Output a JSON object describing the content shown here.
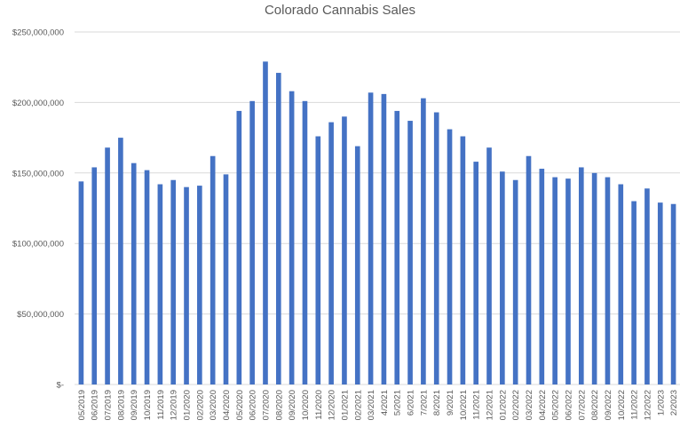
{
  "chart_data": {
    "type": "bar",
    "title": "Colorado Cannabis Sales",
    "xlabel": "",
    "ylabel": "",
    "ylim": [
      0,
      250000000
    ],
    "grid": true,
    "legend": "none",
    "bar_color": "#4472c4",
    "y_ticks": [
      {
        "value": 0,
        "label": "$-"
      },
      {
        "value": 50000000,
        "label": "$50,000,000"
      },
      {
        "value": 100000000,
        "label": "$100,000,000"
      },
      {
        "value": 150000000,
        "label": "$150,000,000"
      },
      {
        "value": 200000000,
        "label": "$200,000,000"
      },
      {
        "value": 250000000,
        "label": "$250,000,000"
      }
    ],
    "categories": [
      "05/2019",
      "06/2019",
      "07/2019",
      "08/2019",
      "09/2019",
      "10/2019",
      "11/2019",
      "12/2019",
      "01/2020",
      "02/2020",
      "03/2020",
      "04/2020",
      "05/2020",
      "06/2020",
      "07/2020",
      "08/2020",
      "09/2020",
      "10/2020",
      "11/2020",
      "12/2020",
      "01/2021",
      "02/2021",
      "03/2021",
      "4/2021",
      "5/2021",
      "6/2021",
      "7/2021",
      "8/2021",
      "9/2021",
      "10/2021",
      "11/2021",
      "12/2021",
      "01/2022",
      "02/2022",
      "03/2022",
      "04/2022",
      "05/2022",
      "06/2022",
      "07/2022",
      "08/2022",
      "09/2022",
      "10/2022",
      "11/2022",
      "12/2022",
      "1/2023",
      "2/2023"
    ],
    "values": [
      144000000,
      154000000,
      168000000,
      175000000,
      157000000,
      152000000,
      142000000,
      145000000,
      140000000,
      141000000,
      162000000,
      149000000,
      194000000,
      201000000,
      229000000,
      221000000,
      208000000,
      201000000,
      176000000,
      186000000,
      190000000,
      169000000,
      207000000,
      206000000,
      194000000,
      187000000,
      203000000,
      193000000,
      181000000,
      176000000,
      158000000,
      168000000,
      151000000,
      145000000,
      162000000,
      153000000,
      147000000,
      146000000,
      154000000,
      150000000,
      147000000,
      142000000,
      130000000,
      139000000,
      129000000,
      128000000
    ]
  }
}
